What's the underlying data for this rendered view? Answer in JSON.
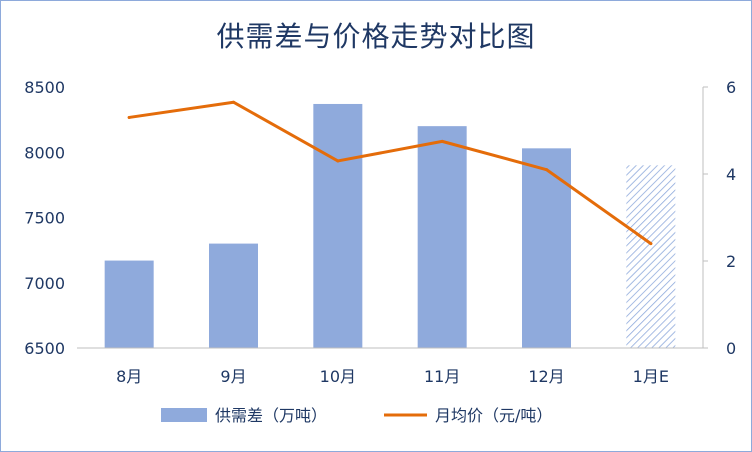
{
  "chart_data": {
    "type": "bar+line",
    "title": "供需差与价格走势对比图",
    "categories": [
      "8月",
      "9月",
      "10月",
      "11月",
      "12月",
      "1月E"
    ],
    "series": [
      {
        "name": "供需差（万吨）",
        "type": "bar",
        "axis": "left",
        "values": [
          7170,
          7300,
          8370,
          8200,
          8030,
          7900
        ],
        "color": "#8faadc",
        "estimated_last_point_hatched": true
      },
      {
        "name": "月均价（元/吨）",
        "type": "line",
        "axis": "right",
        "values": [
          5.3,
          5.65,
          4.3,
          4.75,
          4.1,
          2.4
        ],
        "color": "#e46c0a"
      }
    ],
    "y_left": {
      "ylim": [
        6500,
        8500
      ],
      "ticks": [
        6500,
        7000,
        7500,
        8000,
        8500
      ]
    },
    "y_right": {
      "ylim": [
        0,
        6
      ],
      "ticks": [
        0,
        2,
        4,
        6
      ]
    },
    "grid": false,
    "legend_position": "bottom"
  }
}
